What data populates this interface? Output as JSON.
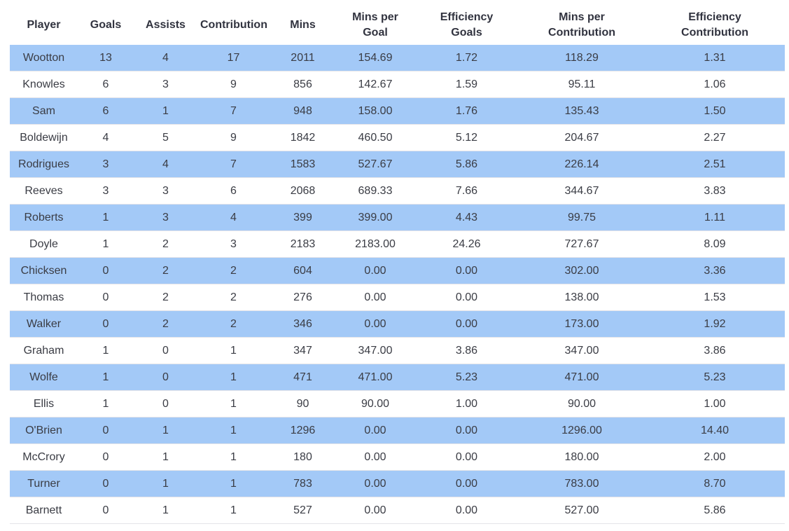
{
  "chart_data": {
    "type": "table",
    "title": "",
    "columns": [
      "Player",
      "Goals",
      "Assists",
      "Contribution",
      "Mins",
      "Mins per\nGoal",
      "Efficiency\nGoals",
      "Mins per\nContribution",
      "Efficiency\nContribution"
    ],
    "rows": [
      [
        "Wootton",
        "13",
        "4",
        "17",
        "2011",
        "154.69",
        "1.72",
        "118.29",
        "1.31"
      ],
      [
        "Knowles",
        "6",
        "3",
        "9",
        "856",
        "142.67",
        "1.59",
        "95.11",
        "1.06"
      ],
      [
        "Sam",
        "6",
        "1",
        "7",
        "948",
        "158.00",
        "1.76",
        "135.43",
        "1.50"
      ],
      [
        "Boldewijn",
        "4",
        "5",
        "9",
        "1842",
        "460.50",
        "5.12",
        "204.67",
        "2.27"
      ],
      [
        "Rodrigues",
        "3",
        "4",
        "7",
        "1583",
        "527.67",
        "5.86",
        "226.14",
        "2.51"
      ],
      [
        "Reeves",
        "3",
        "3",
        "6",
        "2068",
        "689.33",
        "7.66",
        "344.67",
        "3.83"
      ],
      [
        "Roberts",
        "1",
        "3",
        "4",
        "399",
        "399.00",
        "4.43",
        "99.75",
        "1.11"
      ],
      [
        "Doyle",
        "1",
        "2",
        "3",
        "2183",
        "2183.00",
        "24.26",
        "727.67",
        "8.09"
      ],
      [
        "Chicksen",
        "0",
        "2",
        "2",
        "604",
        "0.00",
        "0.00",
        "302.00",
        "3.36"
      ],
      [
        "Thomas",
        "0",
        "2",
        "2",
        "276",
        "0.00",
        "0.00",
        "138.00",
        "1.53"
      ],
      [
        "Walker",
        "0",
        "2",
        "2",
        "346",
        "0.00",
        "0.00",
        "173.00",
        "1.92"
      ],
      [
        "Graham",
        "1",
        "0",
        "1",
        "347",
        "347.00",
        "3.86",
        "347.00",
        "3.86"
      ],
      [
        "Wolfe",
        "1",
        "0",
        "1",
        "471",
        "471.00",
        "5.23",
        "471.00",
        "5.23"
      ],
      [
        "Ellis",
        "1",
        "0",
        "1",
        "90",
        "90.00",
        "1.00",
        "90.00",
        "1.00"
      ],
      [
        "O'Brien",
        "0",
        "1",
        "1",
        "1296",
        "0.00",
        "0.00",
        "1296.00",
        "14.40"
      ],
      [
        "McCrory",
        "0",
        "1",
        "1",
        "180",
        "0.00",
        "0.00",
        "180.00",
        "2.00"
      ],
      [
        "Turner",
        "0",
        "1",
        "1",
        "783",
        "0.00",
        "0.00",
        "783.00",
        "8.70"
      ],
      [
        "Barnett",
        "0",
        "1",
        "1",
        "527",
        "0.00",
        "0.00",
        "527.00",
        "5.86"
      ]
    ],
    "layout": {
      "highlight_rows": "odd rows (1st, 3rd, 5th, ...) highlighted blue",
      "alignment": "center"
    },
    "colors": {
      "highlight_row_background": "#a3c9f7",
      "header_text": "#31333f",
      "body_text": "#3a3c44",
      "row_border": "#e4e4e9",
      "page_background": "#ffffff"
    }
  }
}
